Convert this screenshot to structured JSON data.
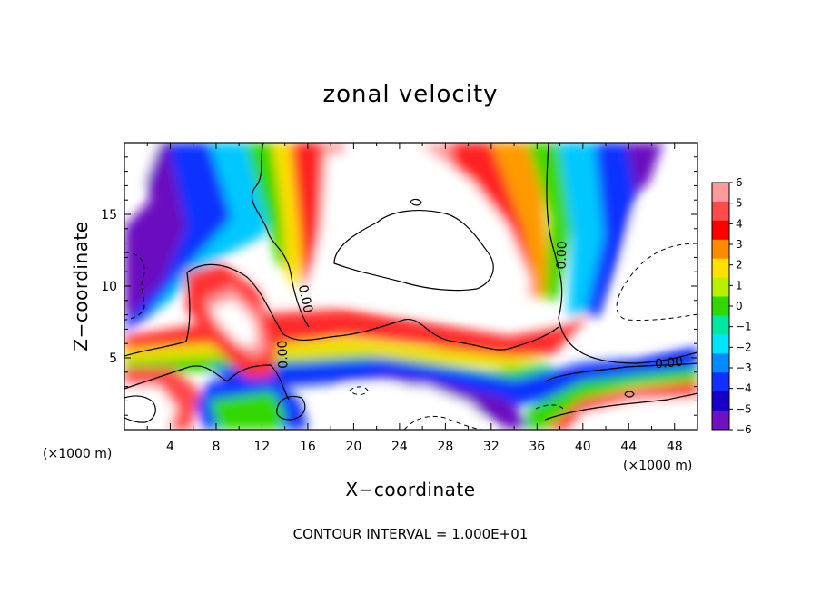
{
  "chart_data": {
    "type": "heatmap",
    "title": "zonal velocity",
    "xlabel": "X−coordinate",
    "ylabel": "Z−coordinate",
    "x_unit_left": "(×1000 m)",
    "x_unit_right": "(×1000 m)",
    "xlim": [
      0,
      50
    ],
    "ylim": [
      0,
      20
    ],
    "x_ticks": [
      4,
      8,
      12,
      16,
      20,
      24,
      28,
      32,
      36,
      40,
      44,
      48
    ],
    "x_tick_labels": [
      "4",
      "8",
      "12",
      "16",
      "20",
      "24",
      "28",
      "32",
      "36",
      "40",
      "44",
      "48"
    ],
    "y_ticks": [
      5,
      10,
      15
    ],
    "y_tick_labels": [
      "5",
      "10",
      "15"
    ],
    "colorbar": {
      "min": -6,
      "max": 6,
      "labels": [
        "6",
        "5",
        "4",
        "3",
        "2",
        "1",
        "0",
        "−1",
        "−2",
        "−3",
        "−4",
        "−5",
        "−6"
      ],
      "colors": [
        "#ff9a9a",
        "#ff4a4a",
        "#ff0000",
        "#ff8a00",
        "#ffe000",
        "#b8f000",
        "#30d800",
        "#00e8a0",
        "#00e4ff",
        "#008cff",
        "#1030ff",
        "#1800c8",
        "#7010c0"
      ]
    },
    "contour_labels": [
      {
        "text": "0.00",
        "x": 38.5,
        "y": 12
      },
      {
        "text": "0.00",
        "x": 47,
        "y": 4.6
      },
      {
        "text": "0.00",
        "x": 15.4,
        "y": 9.5
      },
      {
        "text": "0.00",
        "x": 14,
        "y": 5.3
      }
    ],
    "contour_interval_note": "CONTOUR INTERVAL = 1.000E+01"
  }
}
